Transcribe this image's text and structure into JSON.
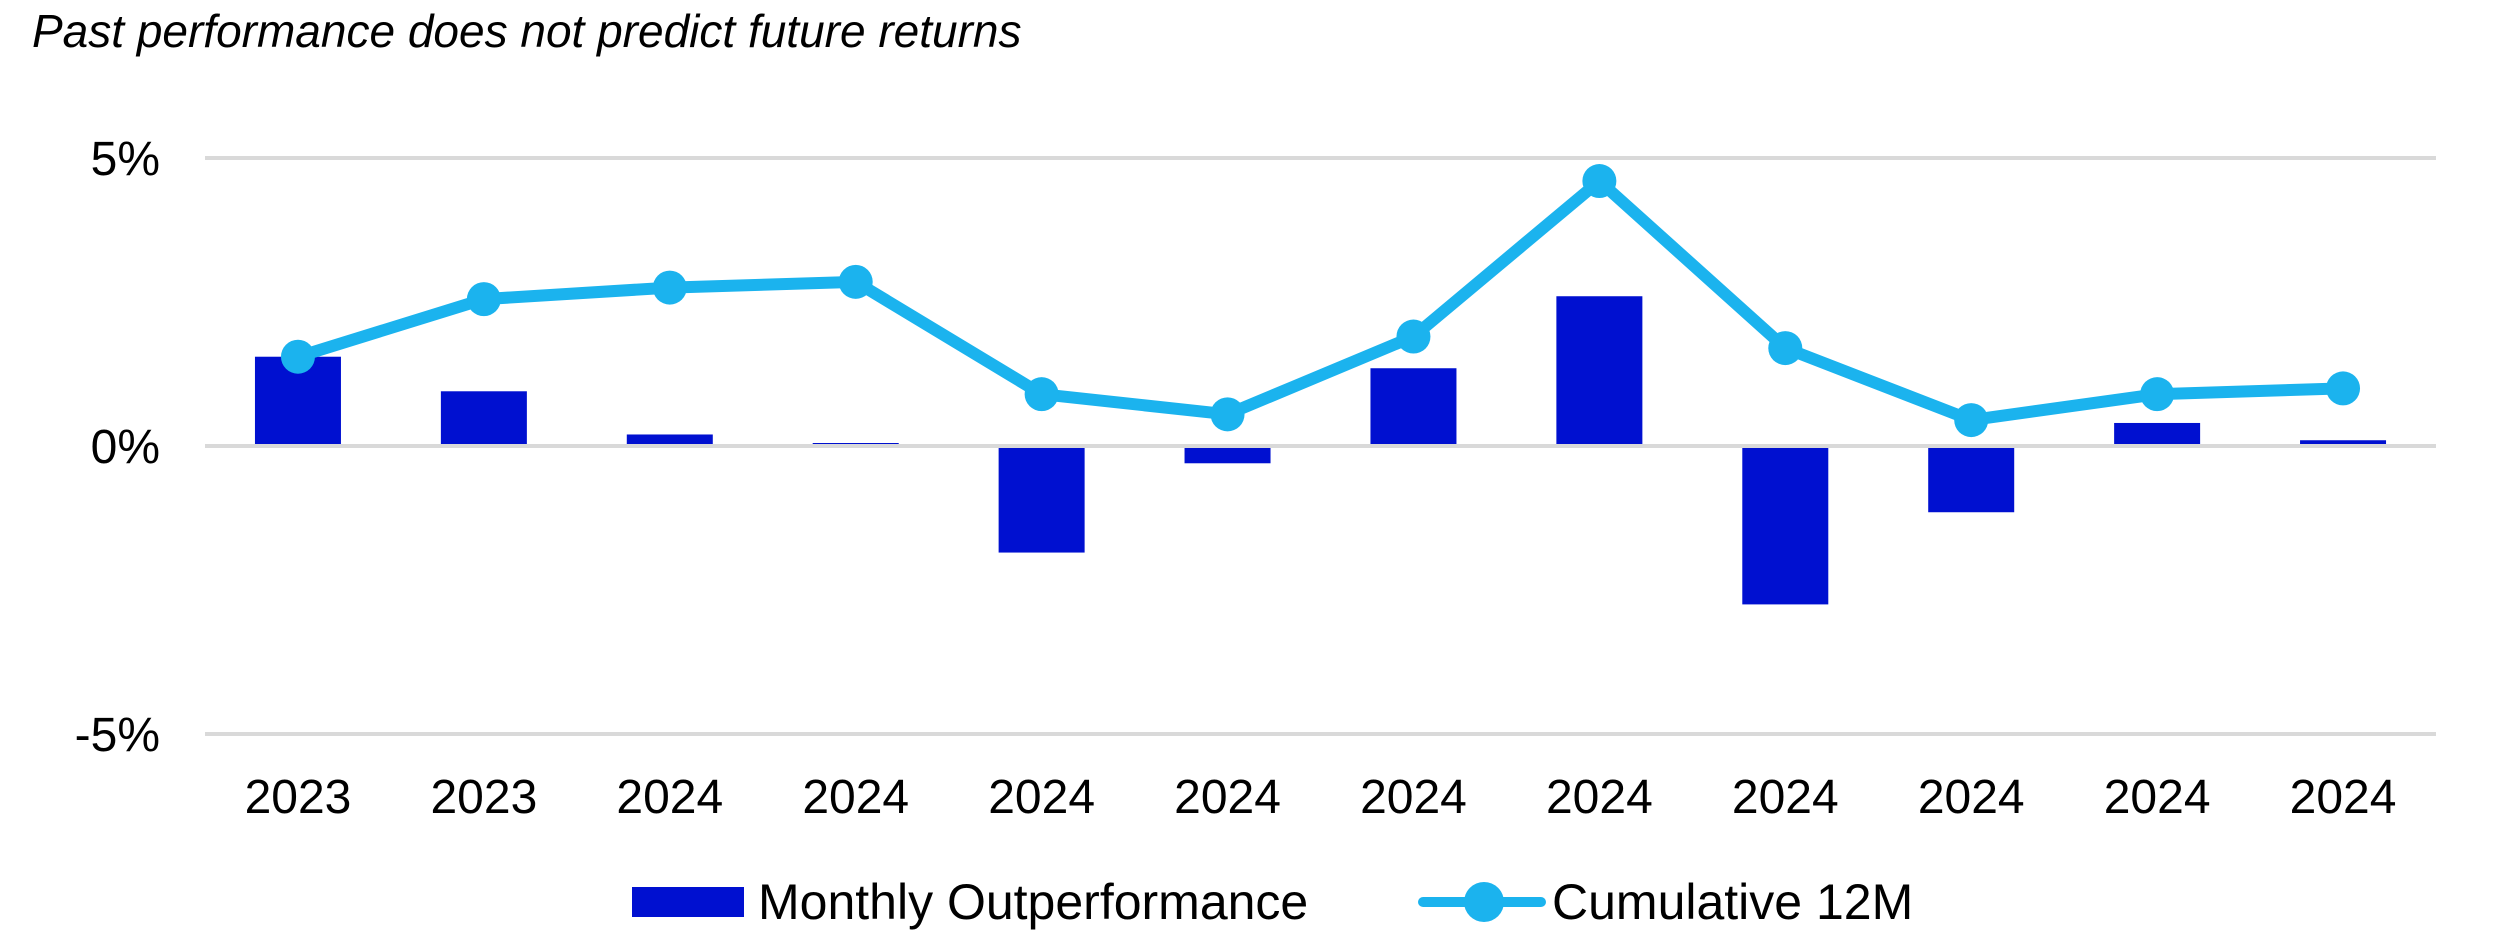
{
  "subtitle": "Past performance does not predict future returns",
  "colors": {
    "bar": "#0010D0",
    "line": "#1BB3EE",
    "grid": "#D9D9D9"
  },
  "chart_data": {
    "type": "bar",
    "categories": [
      "2023",
      "2023",
      "2024",
      "2024",
      "2024",
      "2024",
      "2024",
      "2024",
      "2024",
      "2024",
      "2024",
      "2024"
    ],
    "ylim": [
      -5,
      5
    ],
    "yticks": [
      {
        "value": 5,
        "label": "5%"
      },
      {
        "value": 0,
        "label": "0%"
      },
      {
        "value": -5,
        "label": "-5%"
      }
    ],
    "grid": true,
    "legend_position": "bottom",
    "series": [
      {
        "name": "Monthly Outperformance",
        "type": "bar",
        "values": [
          1.55,
          0.95,
          0.2,
          0.05,
          -1.85,
          -0.3,
          1.35,
          2.6,
          -2.75,
          -1.15,
          0.4,
          0.1
        ]
      },
      {
        "name": "Cumulative 12M",
        "type": "line",
        "values": [
          1.55,
          2.55,
          2.75,
          2.85,
          0.9,
          0.55,
          1.9,
          4.6,
          1.7,
          0.45,
          0.9,
          1.0
        ]
      }
    ]
  }
}
